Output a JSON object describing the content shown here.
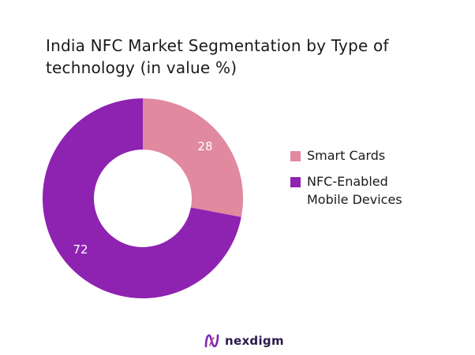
{
  "chart_data": {
    "type": "pie",
    "title": "India NFC Market Segmentation by Type of technology (in value %)",
    "donut": true,
    "categories": [
      "Smart Cards",
      "NFC-Enabled Mobile Devices"
    ],
    "values": [
      28,
      72
    ],
    "data_labels": [
      "28",
      "72"
    ],
    "colors": [
      "#e0899f",
      "#8e22b1"
    ],
    "legend": {
      "placement": "right",
      "entries": [
        "Smart Cards",
        "NFC-Enabled Mobile Devices"
      ]
    }
  },
  "brand": {
    "name": "nexdigm",
    "logo_icon": "nexdigm-logo-icon"
  }
}
